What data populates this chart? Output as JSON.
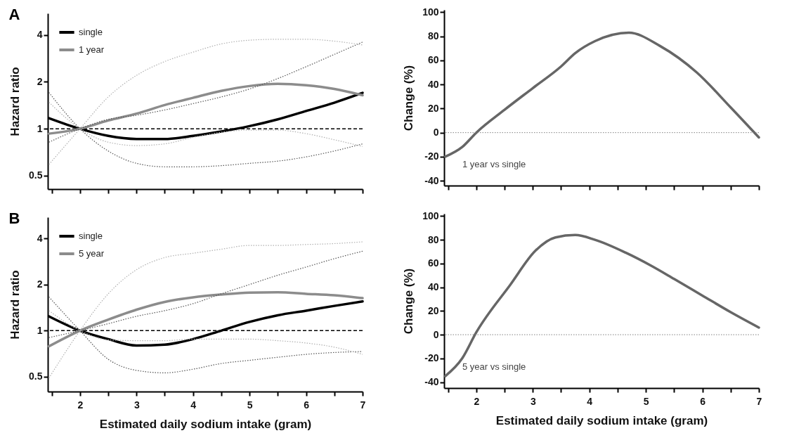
{
  "chart_data": [
    {
      "type": "line",
      "title": "A",
      "ylabel": "Hazard ratio",
      "log": true,
      "legend": "top left",
      "tick_labels": "y",
      "x": [
        1.45,
        2,
        2.5,
        3,
        3.5,
        4,
        4.5,
        5,
        5.5,
        6,
        6.5,
        7
      ],
      "xlim": [
        1.43,
        7
      ],
      "xticks": [
        {
          "value": 1.5,
          "label": null
        },
        2,
        {
          "value": 2.5,
          "label": null
        },
        3,
        {
          "value": 3.5,
          "label": null
        },
        4,
        {
          "value": 4.5,
          "label": null
        },
        5,
        {
          "value": 5.5,
          "label": null
        },
        6,
        {
          "value": 6.5,
          "label": null
        },
        7
      ],
      "ylim": [
        0.41,
        5.5
      ],
      "yticks": [
        0.5,
        1,
        2,
        4
      ],
      "series": [
        {
          "name": "single",
          "color": "#000000",
          "line_style": "solid",
          "values": [
            1.17,
            1.0,
            0.9,
            0.86,
            0.86,
            0.9,
            0.96,
            1.04,
            1.15,
            1.3,
            1.47,
            1.7
          ]
        },
        {
          "name": "1 year",
          "color": "#8c8c8c",
          "line_style": "solid",
          "values": [
            0.93,
            1.0,
            1.13,
            1.25,
            1.42,
            1.58,
            1.75,
            1.88,
            1.94,
            1.9,
            1.8,
            1.64
          ]
        },
        {
          "color": "#555555",
          "line_style": "dotted",
          "values": [
            1.71,
            1.0,
            0.72,
            0.6,
            0.57,
            0.57,
            0.58,
            0.6,
            0.62,
            0.66,
            0.72,
            0.8
          ]
        },
        {
          "color": "#555555",
          "line_style": "dotted",
          "values": [
            0.82,
            1.0,
            1.15,
            1.22,
            1.32,
            1.45,
            1.6,
            1.8,
            2.1,
            2.5,
            3.0,
            3.6
          ]
        },
        {
          "color": "#b0b0b0",
          "line_style": "dotted",
          "values": [
            0.59,
            1.0,
            1.6,
            2.2,
            2.7,
            3.1,
            3.5,
            3.7,
            3.75,
            3.75,
            3.65,
            3.45
          ]
        },
        {
          "color": "#b0b0b0",
          "line_style": "dotted",
          "values": [
            1.48,
            1.0,
            0.82,
            0.78,
            0.8,
            0.88,
            0.95,
            0.98,
            0.98,
            0.93,
            0.85,
            0.77
          ]
        }
      ],
      "ref_lines": [
        {
          "axis": "y",
          "value": 1,
          "color": "#000000",
          "line_style": "dashed"
        }
      ]
    },
    {
      "type": "line",
      "ylabel": "Change (%)",
      "tick_labels": "y",
      "xlim": [
        1.43,
        7
      ],
      "xticks": [
        {
          "value": 1.5,
          "label": null
        },
        2,
        {
          "value": 2.5,
          "label": null
        },
        3,
        {
          "value": 3.5,
          "label": null
        },
        4,
        {
          "value": 4.5,
          "label": null
        },
        5,
        {
          "value": 5.5,
          "label": null
        },
        6,
        {
          "value": 6.5,
          "label": null
        },
        7
      ],
      "ylim": [
        -44,
        102
      ],
      "yticks": [
        -40,
        -20,
        0,
        20,
        40,
        60,
        80,
        100
      ],
      "series": [
        {
          "color": "#666666",
          "line_style": "solid",
          "x": [
            1.45,
            1.75,
            2,
            2.5,
            3,
            3.5,
            3.75,
            4.1,
            4.7,
            5.25,
            5.9,
            6.5,
            7
          ],
          "values": [
            -20,
            -12,
            0,
            19,
            37,
            55,
            66,
            76,
            83,
            72,
            50,
            21,
            -4
          ]
        }
      ],
      "ref_lines": [
        {
          "axis": "y",
          "value": 0,
          "color": "#808080",
          "line_style": "dotted"
        }
      ],
      "annotations": [
        "1 year vs single"
      ]
    },
    {
      "type": "line",
      "title": "B",
      "xlabel": "Estimated daily sodium intake (gram)",
      "ylabel": "Hazard ratio",
      "log": true,
      "legend": "top left",
      "x": [
        1.45,
        2,
        2.5,
        3,
        3.5,
        4,
        4.5,
        5,
        5.5,
        6,
        6.5,
        7
      ],
      "xlim": [
        1.43,
        7
      ],
      "xticks": [
        {
          "value": 1.5,
          "label": null
        },
        2,
        {
          "value": 2.5,
          "label": null
        },
        3,
        {
          "value": 3.5,
          "label": null
        },
        4,
        {
          "value": 4.5,
          "label": null
        },
        5,
        {
          "value": 5.5,
          "label": null
        },
        6,
        {
          "value": 6.5,
          "label": null
        },
        7
      ],
      "ylim": [
        0.4,
        5.5
      ],
      "yticks": [
        0.5,
        1,
        2,
        4
      ],
      "series": [
        {
          "name": "single",
          "color": "#000000",
          "line_style": "solid",
          "values": [
            1.24,
            1.0,
            0.88,
            0.8,
            0.81,
            0.88,
            1.0,
            1.14,
            1.26,
            1.35,
            1.45,
            1.55
          ]
        },
        {
          "name": "5 year",
          "color": "#8c8c8c",
          "line_style": "solid",
          "values": [
            0.79,
            1.0,
            1.18,
            1.37,
            1.54,
            1.65,
            1.72,
            1.77,
            1.78,
            1.74,
            1.7,
            1.63
          ]
        },
        {
          "color": "#555555",
          "line_style": "dotted",
          "values": [
            1.66,
            1.0,
            0.65,
            0.55,
            0.53,
            0.56,
            0.61,
            0.64,
            0.67,
            0.7,
            0.72,
            0.73
          ]
        },
        {
          "color": "#555555",
          "line_style": "dotted",
          "values": [
            0.9,
            1.0,
            1.11,
            1.24,
            1.35,
            1.5,
            1.74,
            2.0,
            2.3,
            2.6,
            2.95,
            3.3
          ]
        },
        {
          "color": "#b0b0b0",
          "line_style": "dotted",
          "values": [
            0.49,
            1.0,
            1.74,
            2.5,
            3.0,
            3.2,
            3.4,
            3.6,
            3.6,
            3.65,
            3.7,
            3.8
          ]
        },
        {
          "color": "#b0b0b0",
          "line_style": "dotted",
          "values": [
            1.35,
            1.0,
            0.87,
            0.86,
            0.86,
            0.88,
            0.88,
            0.88,
            0.86,
            0.83,
            0.78,
            0.7
          ]
        }
      ],
      "ref_lines": [
        {
          "axis": "y",
          "value": 1,
          "color": "#000000",
          "line_style": "dashed"
        }
      ]
    },
    {
      "type": "line",
      "xlabel": "Estimated daily sodium intake (gram)",
      "ylabel": "Change (%)",
      "xlim": [
        1.43,
        7
      ],
      "xticks": [
        {
          "value": 1.5,
          "label": null
        },
        2,
        {
          "value": 2.5,
          "label": null
        },
        3,
        {
          "value": 3.5,
          "label": null
        },
        4,
        {
          "value": 4.5,
          "label": null
        },
        5,
        {
          "value": 5.5,
          "label": null
        },
        6,
        {
          "value": 6.5,
          "label": null
        },
        7
      ],
      "ylim": [
        -45,
        102
      ],
      "yticks": [
        -40,
        -20,
        0,
        20,
        40,
        60,
        80,
        100
      ],
      "series": [
        {
          "color": "#666666",
          "line_style": "solid",
          "x": [
            1.45,
            1.75,
            2,
            2.6,
            3.05,
            3.4,
            3.75,
            4.1,
            4.65,
            5.1,
            5.5,
            6,
            6.5,
            7
          ],
          "values": [
            -35,
            -20,
            2,
            42,
            71,
            82,
            84,
            80,
            69,
            58,
            47,
            33,
            19,
            6
          ]
        }
      ],
      "ref_lines": [
        {
          "axis": "y",
          "value": 0,
          "color": "#808080",
          "line_style": "dotted"
        }
      ],
      "annotations": [
        "5 year vs single"
      ]
    }
  ]
}
